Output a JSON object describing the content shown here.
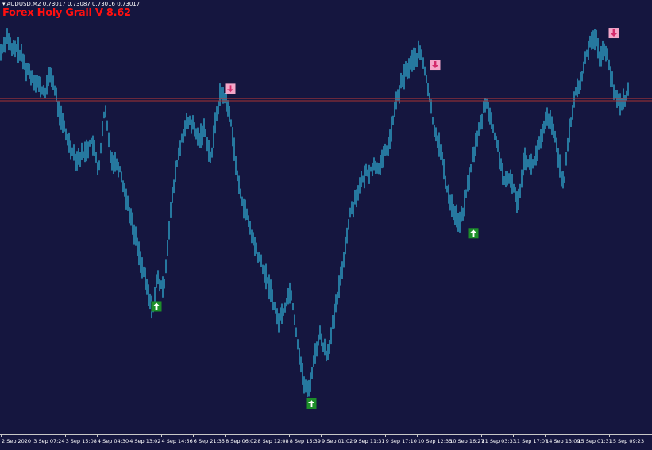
{
  "window": {
    "symbol_header": "AUDUSD,M2  0.73017 0.73087 0.73016 0.73017",
    "indicator_title": "Forex Holy Grail V 8.62",
    "header_icon": "triangle-down-icon"
  },
  "colors": {
    "background": "#15163f",
    "price_line": "#34c8ee",
    "level_line": "#c03a3a",
    "buy_arrow_bg": "#1d8f2a",
    "sell_arrow_bg": "#f4a6c8",
    "axis_text": "#ffffff",
    "title": "#ff1010"
  },
  "chart_data": {
    "type": "line",
    "symbol": "AUDUSD",
    "timeframe": "M2",
    "ohlc": {
      "open": 0.73017,
      "high": 0.73087,
      "low": 0.73016,
      "close": 0.73017
    },
    "x_tick_labels": [
      "2 Sep 2020",
      "3 Sep 07:24",
      "3 Sep 15:08",
      "4 Sep 04:30",
      "4 Sep 13:02",
      "4 Sep 14:56",
      "6 Sep 21:35",
      "8 Sep 06:02",
      "8 Sep 12:08",
      "8 Sep 15:39",
      "9 Sep 01:02",
      "9 Sep 11:31",
      "9 Sep 17:10",
      "10 Sep 12:35",
      "10 Sep 16:27",
      "11 Sep 03:33",
      "11 Sep 17:07",
      "14 Sep 13:09",
      "15 Sep 01:31",
      "15 Sep 09:23"
    ],
    "price_path": {
      "x": [
        0,
        10,
        14,
        22,
        34,
        44,
        56,
        64,
        74,
        84,
        96,
        106,
        116,
        124,
        132,
        140,
        150,
        160,
        168,
        178,
        186,
        192,
        198,
        206,
        214,
        222,
        232,
        240,
        250,
        258,
        266,
        272,
        278,
        284,
        292,
        300,
        310,
        320,
        330,
        340,
        350,
        358,
        366,
        374,
        382,
        388,
        394,
        402,
        412,
        420,
        430,
        440,
        450,
        460,
        470,
        480,
        490,
        500,
        510,
        520,
        530,
        538,
        546,
        554,
        562,
        572,
        580,
        590,
        596,
        604,
        612,
        620,
        628,
        636,
        644,
        652,
        660,
        670,
        680,
        690,
        700,
        710,
        716,
        724,
        732,
        740,
        748,
        756,
        764,
        772,
        780,
        786,
        792
      ],
      "y": [
        0.73079,
        0.73099,
        0.73082,
        0.73085,
        0.73063,
        0.73053,
        0.73038,
        0.73061,
        0.73021,
        0.72993,
        0.7297,
        0.72976,
        0.7299,
        0.72957,
        0.73023,
        0.7297,
        0.72963,
        0.72927,
        0.72898,
        0.72862,
        0.72832,
        0.72812,
        0.72846,
        0.72833,
        0.72909,
        0.72962,
        0.73002,
        0.73009,
        0.7299,
        0.73002,
        0.72968,
        0.73015,
        0.73039,
        0.73034,
        0.73004,
        0.72943,
        0.72913,
        0.72882,
        0.72859,
        0.72836,
        0.72802,
        0.72814,
        0.72836,
        0.72785,
        0.7274,
        0.72726,
        0.72755,
        0.72788,
        0.72766,
        0.72801,
        0.72851,
        0.7291,
        0.72936,
        0.72954,
        0.72962,
        0.72964,
        0.72987,
        0.73033,
        0.73059,
        0.73073,
        0.73081,
        0.73049,
        0.73005,
        0.72983,
        0.72942,
        0.72914,
        0.72903,
        0.72946,
        0.72976,
        0.73001,
        0.73032,
        0.73004,
        0.72977,
        0.72943,
        0.72951,
        0.72921,
        0.72973,
        0.72962,
        0.72986,
        0.73016,
        0.72989,
        0.72939,
        0.72993,
        0.73037,
        0.73052,
        0.73085,
        0.731,
        0.73076,
        0.73085,
        0.73042,
        0.73028,
        0.73032,
        0.73041
      ]
    },
    "level_line_value": 0.73033,
    "signals": [
      {
        "type": "buy",
        "x": 197,
        "price": 0.72817,
        "icon": "arrow-up-icon"
      },
      {
        "type": "sell",
        "x": 290,
        "price": 0.73043,
        "icon": "arrow-down-icon"
      },
      {
        "type": "buy",
        "x": 392,
        "price": 0.72716,
        "icon": "arrow-up-icon"
      },
      {
        "type": "sell",
        "x": 548,
        "price": 0.73068,
        "icon": "arrow-down-icon"
      },
      {
        "type": "buy",
        "x": 596,
        "price": 0.72893,
        "icon": "arrow-up-icon"
      },
      {
        "type": "sell",
        "x": 773,
        "price": 0.73101,
        "icon": "arrow-down-icon"
      }
    ],
    "x_range": [
      0,
      821
    ],
    "y_range": [
      0.7269,
      0.73127
    ],
    "grid": false,
    "legend": "none"
  }
}
